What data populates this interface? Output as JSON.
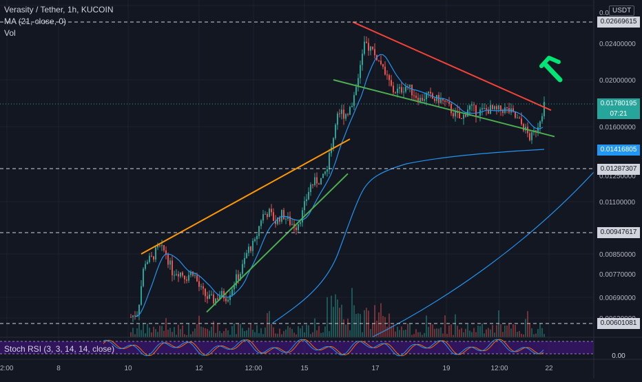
{
  "legend": {
    "title": "Verasity / Tether, 1h, KUCOIN",
    "ma": "MA (21, close, 0)",
    "vol": "Vol"
  },
  "stoch_label": "Stoch RSI (3, 3, 14, 14, close)",
  "currency": "USDT",
  "price_tags": {
    "top_line": "0.02669615",
    "current": "0.01780195",
    "countdown": "07:21",
    "blue_ma": "0.01416805",
    "support_line": "0.01287307",
    "mid_line": "0.00947617",
    "bottom_line": "0.00601081",
    "stoch_zero": "0.00"
  },
  "colors": {
    "background": "#131722",
    "up": "#26a69a",
    "down": "#ef5350",
    "ma": "#2196f3",
    "upper_trendline": "#ff9800",
    "lower_trendline": "#4caf50",
    "resistance": "#f44336",
    "arrow": "#00e676",
    "stoch_k": "#2196f3",
    "stoch_d": "#ff6d00",
    "stoch_band": "#4a148c"
  },
  "chart_data": {
    "type": "candlestick",
    "title": "Verasity / Tether, 1h, KUCOIN",
    "y_ticks": [
      "0.0",
      "0.02400000",
      "0.02000000",
      "0.01600000",
      "0.01250000",
      "0.01100000",
      "0.00850000",
      "0.00770000",
      "0.00690000",
      "0.00620000"
    ],
    "x_ticks": [
      "2:00",
      "8",
      "10",
      "12",
      "12:00",
      "15",
      "17",
      "19",
      "12:00",
      "22"
    ],
    "horizontal_levels": [
      0.02669615,
      0.01287307,
      0.00947617,
      0.00601081
    ],
    "current_price": 0.01780195,
    "ma_21_last": 0.01416805,
    "price_path": [
      [
        188,
        0.0062
      ],
      [
        200,
        0.0064
      ],
      [
        210,
        0.0082
      ],
      [
        220,
        0.0083
      ],
      [
        230,
        0.0088
      ],
      [
        240,
        0.0086
      ],
      [
        250,
        0.0078
      ],
      [
        260,
        0.0078
      ],
      [
        270,
        0.0076
      ],
      [
        280,
        0.0078
      ],
      [
        290,
        0.0072
      ],
      [
        300,
        0.0069
      ],
      [
        310,
        0.0068
      ],
      [
        320,
        0.007
      ],
      [
        330,
        0.0069
      ],
      [
        340,
        0.0074
      ],
      [
        350,
        0.0078
      ],
      [
        360,
        0.0087
      ],
      [
        370,
        0.009
      ],
      [
        380,
        0.0103
      ],
      [
        390,
        0.0105
      ],
      [
        400,
        0.01
      ],
      [
        410,
        0.0104
      ],
      [
        420,
        0.01
      ],
      [
        430,
        0.0098
      ],
      [
        440,
        0.0105
      ],
      [
        450,
        0.0119
      ],
      [
        460,
        0.0122
      ],
      [
        470,
        0.0123
      ],
      [
        480,
        0.014
      ],
      [
        490,
        0.0172
      ],
      [
        500,
        0.017
      ],
      [
        510,
        0.0175
      ],
      [
        520,
        0.0205
      ],
      [
        530,
        0.024
      ],
      [
        540,
        0.0233
      ],
      [
        550,
        0.022
      ],
      [
        560,
        0.0205
      ],
      [
        570,
        0.019
      ],
      [
        580,
        0.019
      ],
      [
        590,
        0.0195
      ],
      [
        600,
        0.0188
      ],
      [
        610,
        0.0182
      ],
      [
        620,
        0.0186
      ],
      [
        630,
        0.0182
      ],
      [
        640,
        0.0182
      ],
      [
        650,
        0.0176
      ],
      [
        660,
        0.017
      ],
      [
        670,
        0.0165
      ],
      [
        680,
        0.0176
      ],
      [
        690,
        0.0172
      ],
      [
        700,
        0.0172
      ],
      [
        710,
        0.0174
      ],
      [
        720,
        0.0172
      ],
      [
        730,
        0.0174
      ],
      [
        740,
        0.0172
      ],
      [
        750,
        0.0166
      ],
      [
        760,
        0.016
      ],
      [
        770,
        0.015
      ],
      [
        780,
        0.016
      ],
      [
        790,
        0.0178
      ]
    ],
    "trendlines": [
      {
        "name": "upper-channel",
        "from": [
          205,
          0.0085
        ],
        "to": [
          508,
          0.015
        ]
      },
      {
        "name": "lower-channel",
        "from": [
          300,
          0.0064
        ],
        "to": [
          505,
          0.0126
        ]
      },
      {
        "name": "resistance",
        "from": [
          512,
          0.0267
        ],
        "to": [
          800,
          0.0173
        ]
      },
      {
        "name": "support",
        "from": [
          484,
          0.02
        ],
        "to": [
          805,
          0.0152
        ]
      }
    ]
  }
}
